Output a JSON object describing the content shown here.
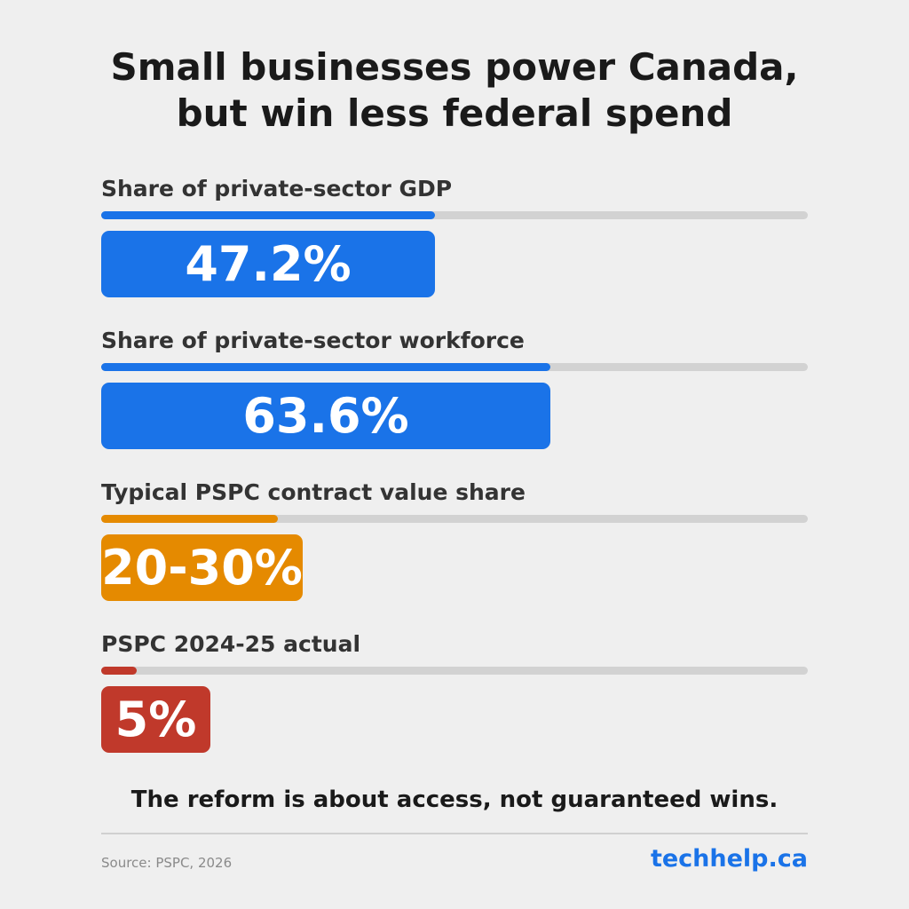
{
  "title_lines": [
    "Small businesses power Canada,",
    "but win less federal spend"
  ],
  "chart_data": {
    "type": "bar",
    "title": "Small businesses power Canada, but win less federal spend",
    "categories": [
      "Share of private-sector GDP",
      "Share of private-sector workforce",
      "Typical PSPC contract value share",
      "PSPC 2024-25 actual"
    ],
    "values": [
      47.2,
      63.6,
      25,
      5
    ],
    "value_labels": [
      "47.2%",
      "63.6%",
      "20-30%",
      "5%"
    ],
    "unit": "%",
    "xlim": [
      0,
      100
    ],
    "colors": [
      "#1a73e8",
      "#1a73e8",
      "#e58a00",
      "#c0392b"
    ],
    "track_color": "#d2d2d2"
  },
  "takeaway": "The reform is about access, not guaranteed wins.",
  "source": "Source: PSPC, 2026",
  "brand": "techhelp.ca"
}
